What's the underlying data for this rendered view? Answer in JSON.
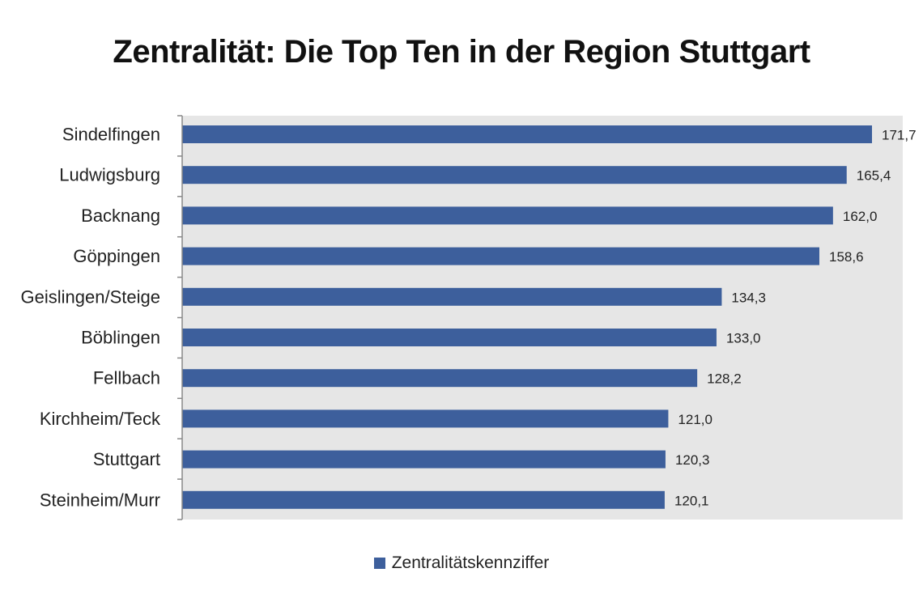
{
  "chart_data": {
    "type": "bar",
    "orientation": "horizontal",
    "title": "Zentralität: Die Top Ten in der Region Stuttgart",
    "categories": [
      "Sindelfingen",
      "Ludwigsburg",
      "Backnang",
      "Göppingen",
      "Geislingen/Steige",
      "Böblingen",
      "Fellbach",
      "Kirchheim/Teck",
      "Stuttgart",
      "Steinheim/Murr"
    ],
    "series": [
      {
        "name": "Zentralitätskennziffer",
        "values": [
          171.7,
          165.4,
          162.0,
          158.6,
          134.3,
          133.0,
          128.2,
          121.0,
          120.3,
          120.1
        ],
        "labels": [
          "171,7",
          "165,4",
          "162,0",
          "158,6",
          "134,3",
          "133,0",
          "128,2",
          "121,0",
          "120,3",
          "120,1"
        ]
      }
    ],
    "xlim": [
      0,
      180
    ],
    "grid": false,
    "legend_position": "bottom",
    "colors": {
      "bar": "#3D5F9C",
      "plot_background": "#E6E6E6",
      "axis": "#888888"
    }
  }
}
